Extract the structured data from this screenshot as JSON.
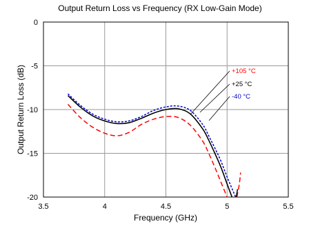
{
  "chart_data": {
    "type": "line",
    "title": "Output Return Loss vs Frequency (RX Low-Gain Mode)",
    "xlabel": "Frequency (GHz)",
    "ylabel": "Output Return Loss (dB)",
    "xlim": [
      3.5,
      5.5
    ],
    "ylim": [
      -20,
      0
    ],
    "xticks": [
      "3.5",
      "4",
      "4.5",
      "5",
      "5.5"
    ],
    "yticks": [
      "0",
      "-5",
      "-10",
      "-15",
      "-20"
    ],
    "grid": true,
    "legend": "callout labels, upper middle-right",
    "series": [
      {
        "name": "+105 °C",
        "color": "#ff0000",
        "dash": "dashed",
        "x": [
          3.7,
          3.8,
          3.9,
          4.0,
          4.1,
          4.2,
          4.3,
          4.4,
          4.5,
          4.6,
          4.7,
          4.8,
          4.85,
          4.9,
          4.95,
          5.0
        ],
        "y": [
          -9.4,
          -10.9,
          -12.0,
          -12.7,
          -13.0,
          -12.6,
          -11.7,
          -11.1,
          -10.8,
          -10.9,
          -11.8,
          -13.6,
          -15.0,
          -16.6,
          -18.3,
          -20.0
        ]
      },
      {
        "name": "+25 °C",
        "color": "#000000",
        "dash": "solid",
        "x": [
          3.7,
          3.8,
          3.9,
          4.0,
          4.1,
          4.2,
          4.3,
          4.4,
          4.5,
          4.6,
          4.7,
          4.8,
          4.85,
          4.9,
          4.95,
          5.0,
          5.04
        ],
        "y": [
          -8.4,
          -9.7,
          -10.7,
          -11.3,
          -11.6,
          -11.5,
          -11.0,
          -10.4,
          -10.0,
          -9.9,
          -10.5,
          -12.2,
          -13.5,
          -15.0,
          -16.6,
          -18.5,
          -20.0
        ]
      },
      {
        "name": "-40 °C",
        "color": "#0000cc",
        "dash": "dotted",
        "x": [
          3.7,
          3.8,
          3.9,
          4.0,
          4.1,
          4.2,
          4.3,
          4.4,
          4.5,
          4.6,
          4.7,
          4.8,
          4.85,
          4.9,
          4.95,
          5.0,
          5.07
        ],
        "y": [
          -8.2,
          -9.5,
          -10.5,
          -11.1,
          -11.4,
          -11.3,
          -10.8,
          -10.1,
          -9.7,
          -9.6,
          -10.1,
          -11.7,
          -13.0,
          -14.4,
          -15.9,
          -17.7,
          -20.0
        ]
      }
    ]
  }
}
